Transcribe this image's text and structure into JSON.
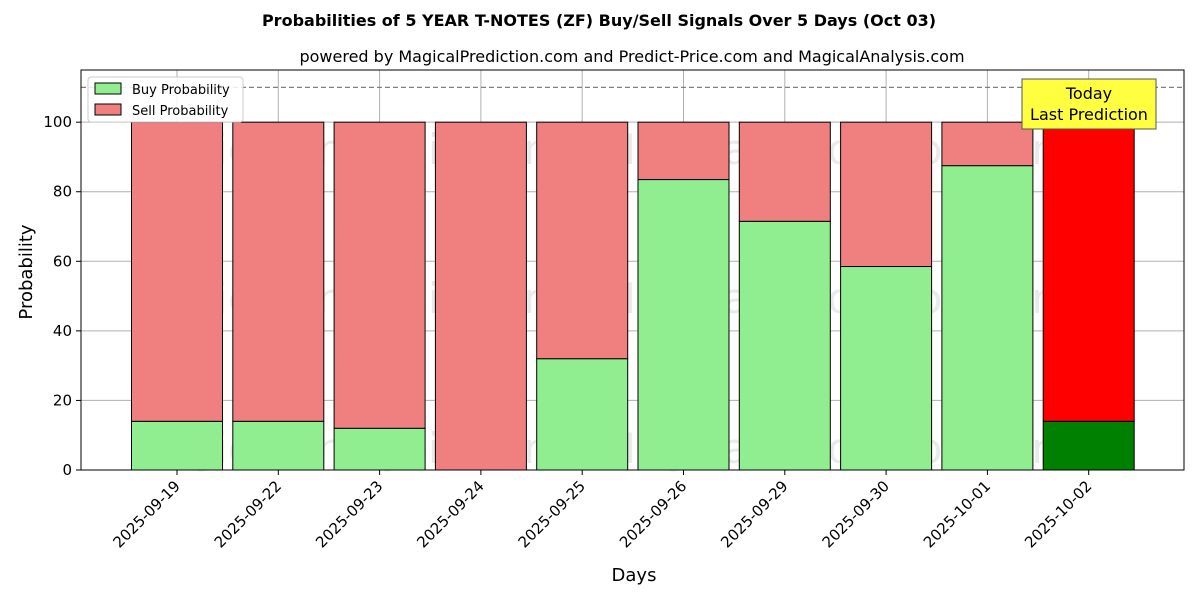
{
  "chart_data": {
    "type": "bar",
    "stacked": true,
    "title": "Probabilities of 5 YEAR T-NOTES (ZF) Buy/Sell Signals Over 5 Days (Oct 03)",
    "subtitle": "powered by MagicalPrediction.com and Predict-Price.com and MagicalAnalysis.com",
    "xlabel": "Days",
    "ylabel": "Probability",
    "ylim": [
      0,
      115
    ],
    "yticks": [
      0,
      20,
      40,
      60,
      80,
      100
    ],
    "reference_line": 110,
    "grid": true,
    "legend_position": "top-left",
    "categories": [
      "2025-09-19",
      "2025-09-22",
      "2025-09-23",
      "2025-09-24",
      "2025-09-25",
      "2025-09-26",
      "2025-09-29",
      "2025-09-30",
      "2025-10-01",
      "2025-10-02"
    ],
    "series": [
      {
        "name": "Buy Probability",
        "values": [
          14,
          14,
          12,
          0,
          32,
          83.5,
          71.5,
          58.5,
          87.5,
          14
        ],
        "color": "#90ee90",
        "highlight_color": "#008000"
      },
      {
        "name": "Sell Probability",
        "values": [
          86,
          86,
          88,
          100,
          68,
          16.5,
          28.5,
          41.5,
          12.5,
          86
        ],
        "color": "#f08080",
        "highlight_color": "#ff0000"
      }
    ],
    "highlight_index": 9,
    "annotation": {
      "lines": [
        "Today",
        "Last Prediction"
      ],
      "background": "#ffff40"
    },
    "watermarks": [
      "MagicalAnalysis.com",
      "MagicalPrediction.com"
    ]
  }
}
